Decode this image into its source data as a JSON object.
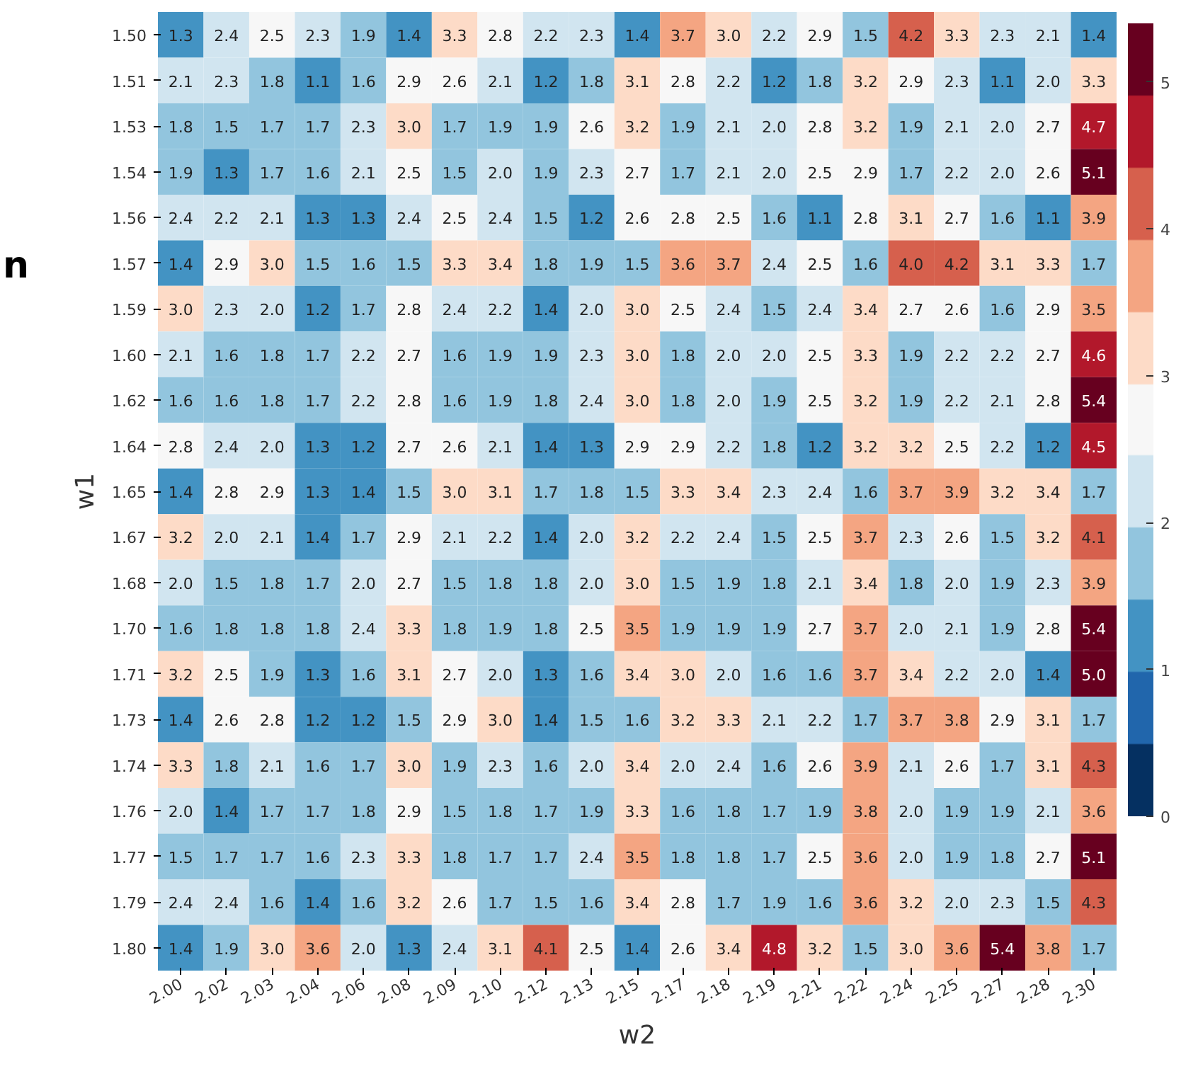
{
  "chart_data": {
    "type": "heatmap",
    "xlabel": "w2",
    "ylabel": "w1",
    "annotations": [
      "n"
    ],
    "categories": [
      "2.00",
      "2.02",
      "2.03",
      "2.04",
      "2.06",
      "2.08",
      "2.09",
      "2.10",
      "2.12",
      "2.13",
      "2.15",
      "2.17",
      "2.18",
      "2.19",
      "2.21",
      "2.22",
      "2.24",
      "2.25",
      "2.27",
      "2.28",
      "2.30"
    ],
    "y_categories": [
      "1.50",
      "1.51",
      "1.53",
      "1.54",
      "1.56",
      "1.57",
      "1.59",
      "1.60",
      "1.62",
      "1.64",
      "1.65",
      "1.67",
      "1.68",
      "1.70",
      "1.71",
      "1.73",
      "1.74",
      "1.76",
      "1.77",
      "1.79",
      "1.80"
    ],
    "cells": [
      [
        1.3,
        2.4,
        2.5,
        2.3,
        1.9,
        1.4,
        3.3,
        2.8,
        2.2,
        2.3,
        1.4,
        3.7,
        3.0,
        2.2,
        2.9,
        1.5,
        4.2,
        3.3,
        2.3,
        2.1,
        1.4
      ],
      [
        2.1,
        2.3,
        1.8,
        1.1,
        1.6,
        2.9,
        2.6,
        2.1,
        1.2,
        1.8,
        3.1,
        2.8,
        2.2,
        1.2,
        1.8,
        3.2,
        2.9,
        2.3,
        1.1,
        2.0,
        3.3
      ],
      [
        1.8,
        1.5,
        1.7,
        1.7,
        2.3,
        3.0,
        1.7,
        1.9,
        1.9,
        2.6,
        3.2,
        1.9,
        2.1,
        2.0,
        2.8,
        3.2,
        1.9,
        2.1,
        2.0,
        2.7,
        4.7
      ],
      [
        1.9,
        1.3,
        1.7,
        1.6,
        2.1,
        2.5,
        1.5,
        2.0,
        1.9,
        2.3,
        2.7,
        1.7,
        2.1,
        2.0,
        2.5,
        2.9,
        1.7,
        2.2,
        2.0,
        2.6,
        5.1
      ],
      [
        2.4,
        2.2,
        2.1,
        1.3,
        1.3,
        2.4,
        2.5,
        2.4,
        1.5,
        1.2,
        2.6,
        2.8,
        2.5,
        1.6,
        1.1,
        2.8,
        3.1,
        2.7,
        1.6,
        1.1,
        3.9
      ],
      [
        1.4,
        2.9,
        3.0,
        1.5,
        1.6,
        1.5,
        3.3,
        3.4,
        1.8,
        1.9,
        1.5,
        3.6,
        3.7,
        2.4,
        2.5,
        1.6,
        4.0,
        4.2,
        3.1,
        3.3,
        1.7
      ],
      [
        3.0,
        2.3,
        2.0,
        1.2,
        1.7,
        2.8,
        2.4,
        2.2,
        1.4,
        2.0,
        3.0,
        2.5,
        2.4,
        1.5,
        2.4,
        3.4,
        2.7,
        2.6,
        1.6,
        2.9,
        3.5
      ],
      [
        2.1,
        1.6,
        1.8,
        1.7,
        2.2,
        2.7,
        1.6,
        1.9,
        1.9,
        2.3,
        3.0,
        1.8,
        2.0,
        2.0,
        2.5,
        3.3,
        1.9,
        2.2,
        2.2,
        2.7,
        4.6
      ],
      [
        1.6,
        1.6,
        1.8,
        1.7,
        2.2,
        2.8,
        1.6,
        1.9,
        1.8,
        2.4,
        3.0,
        1.8,
        2.0,
        1.9,
        2.5,
        3.2,
        1.9,
        2.2,
        2.1,
        2.8,
        5.4
      ],
      [
        2.8,
        2.4,
        2.0,
        1.3,
        1.2,
        2.7,
        2.6,
        2.1,
        1.4,
        1.3,
        2.9,
        2.9,
        2.2,
        1.8,
        1.2,
        3.2,
        3.2,
        2.5,
        2.2,
        1.2,
        4.5
      ],
      [
        1.4,
        2.8,
        2.9,
        1.3,
        1.4,
        1.5,
        3.0,
        3.1,
        1.7,
        1.8,
        1.5,
        3.3,
        3.4,
        2.3,
        2.4,
        1.6,
        3.7,
        3.9,
        3.2,
        3.4,
        1.7
      ],
      [
        3.2,
        2.0,
        2.1,
        1.4,
        1.7,
        2.9,
        2.1,
        2.2,
        1.4,
        2.0,
        3.2,
        2.2,
        2.4,
        1.5,
        2.5,
        3.7,
        2.3,
        2.6,
        1.5,
        3.2,
        4.1
      ],
      [
        2.0,
        1.5,
        1.8,
        1.7,
        2.0,
        2.7,
        1.5,
        1.8,
        1.8,
        2.0,
        3.0,
        1.5,
        1.9,
        1.8,
        2.1,
        3.4,
        1.8,
        2.0,
        1.9,
        2.3,
        3.9
      ],
      [
        1.6,
        1.8,
        1.8,
        1.8,
        2.4,
        3.3,
        1.8,
        1.9,
        1.8,
        2.5,
        3.5,
        1.9,
        1.9,
        1.9,
        2.7,
        3.7,
        2.0,
        2.1,
        1.9,
        2.8,
        5.4
      ],
      [
        3.2,
        2.5,
        1.9,
        1.3,
        1.6,
        3.1,
        2.7,
        2.0,
        1.3,
        1.6,
        3.4,
        3.0,
        2.0,
        1.6,
        1.6,
        3.7,
        3.4,
        2.2,
        2.0,
        1.4,
        5.0
      ],
      [
        1.4,
        2.6,
        2.8,
        1.2,
        1.2,
        1.5,
        2.9,
        3.0,
        1.4,
        1.5,
        1.6,
        3.2,
        3.3,
        2.1,
        2.2,
        1.7,
        3.7,
        3.8,
        2.9,
        3.1,
        1.7
      ],
      [
        3.3,
        1.8,
        2.1,
        1.6,
        1.7,
        3.0,
        1.9,
        2.3,
        1.6,
        2.0,
        3.4,
        2.0,
        2.4,
        1.6,
        2.6,
        3.9,
        2.1,
        2.6,
        1.7,
        3.1,
        4.3
      ],
      [
        2.0,
        1.4,
        1.7,
        1.7,
        1.8,
        2.9,
        1.5,
        1.8,
        1.7,
        1.9,
        3.3,
        1.6,
        1.8,
        1.7,
        1.9,
        3.8,
        2.0,
        1.9,
        1.9,
        2.1,
        3.6
      ],
      [
        1.5,
        1.7,
        1.7,
        1.6,
        2.3,
        3.3,
        1.8,
        1.7,
        1.7,
        2.4,
        3.5,
        1.8,
        1.8,
        1.7,
        2.5,
        3.6,
        2.0,
        1.9,
        1.8,
        2.7,
        5.1
      ],
      [
        2.4,
        2.4,
        1.6,
        1.4,
        1.6,
        3.2,
        2.6,
        1.7,
        1.5,
        1.6,
        3.4,
        2.8,
        1.7,
        1.9,
        1.6,
        3.6,
        3.2,
        2.0,
        2.3,
        1.5,
        4.3
      ],
      [
        1.4,
        1.9,
        3.0,
        3.6,
        2.0,
        1.3,
        2.4,
        3.1,
        4.1,
        2.5,
        1.4,
        2.6,
        3.4,
        4.8,
        3.2,
        1.5,
        3.0,
        3.6,
        5.4,
        3.8,
        1.7
      ]
    ],
    "data_labels": true,
    "cell_labels": [
      [
        "1.3",
        "2.4",
        "2.5",
        "2.3",
        "1.9",
        "1.4",
        "3.3",
        "2.8",
        "2.2",
        "2.3",
        "1.4",
        "3.7",
        "3.0",
        "2.2",
        "2.9",
        "1.5",
        "4.2",
        "3.3",
        "2.3",
        "2.1",
        "1.4"
      ],
      [
        "2.1",
        "2.3",
        "1.8",
        "1.1",
        "1.6",
        "2.9",
        "2.6",
        "2.1",
        "1.2",
        "1.8",
        "3.1",
        "2.8",
        "2.2",
        "1.2",
        "1.8",
        "3.2",
        "2.9",
        "2.3",
        "1.1",
        "2.0",
        "3.3"
      ],
      [
        "1.8",
        "1.5",
        "1.7",
        "1.7",
        "2.3",
        "3.0",
        "1.7",
        "1.9",
        "1.9",
        "2.6",
        "3.2",
        "1.9",
        "2.1",
        "2.0",
        "2.8",
        "3.2",
        "1.9",
        "2.1",
        "2.0",
        "2.7",
        "4.7"
      ],
      [
        "1.9",
        "1.3",
        "1.7",
        "1.6",
        "2.1",
        "2.5",
        "1.5",
        "2.0",
        "1.9",
        "2.3",
        "2.7",
        "1.7",
        "2.1",
        "2.0",
        "2.5",
        "2.9",
        "1.7",
        "2.2",
        "2.0",
        "2.6",
        "5.1"
      ],
      [
        "2.4",
        "2.2",
        "2.1",
        "1.3",
        "1.3",
        "2.4",
        "2.5",
        "2.4",
        "1.5",
        "1.2",
        "2.6",
        "2.8",
        "2.5",
        "1.6",
        "1.1",
        "2.8",
        "3.1",
        "2.7",
        "1.6",
        "1.1",
        "3.9"
      ],
      [
        "1.4",
        "2.9",
        "3.0",
        "1.5",
        "1.6",
        "1.5",
        "3.3",
        "3.4",
        "1.8",
        "1.9",
        "1.5",
        "3.6",
        "3.7",
        "2.4",
        "2.5",
        "1.6",
        "4.0",
        "4.2",
        "3.1",
        "3.3",
        "1.7"
      ],
      [
        "3.0",
        "2.3",
        "2.0",
        "1.2",
        "1.7",
        "2.8",
        "2.4",
        "2.2",
        "1.4",
        "2.0",
        "3.0",
        "2.5",
        "2.4",
        "1.5",
        "2.4",
        "3.4",
        "2.7",
        "2.6",
        "1.6",
        "2.9",
        "3.5"
      ],
      [
        "2.1",
        "1.6",
        "1.8",
        "1.7",
        "2.2",
        "2.7",
        "1.6",
        "1.9",
        "1.9",
        "2.3",
        "3.0",
        "1.8",
        "2.0",
        "2.0",
        "2.5",
        "3.3",
        "1.9",
        "2.2",
        "2.2",
        "2.7",
        "4.6"
      ],
      [
        "1.6",
        "1.6",
        "1.8",
        "1.7",
        "2.2",
        "2.8",
        "1.6",
        "1.9",
        "1.8",
        "2.4",
        "3.0",
        "1.8",
        "2.0",
        "1.9",
        "2.5",
        "3.2",
        "1.9",
        "2.2",
        "2.1",
        "2.8",
        "5.4"
      ],
      [
        "2.8",
        "2.4",
        "2.0",
        "1.3",
        "1.2",
        "2.7",
        "2.6",
        "2.1",
        "1.4",
        "1.3",
        "2.9",
        "2.9",
        "2.2",
        "1.8",
        "1.2",
        "3.2",
        "3.2",
        "2.5",
        "2.2",
        "1.2",
        "4.5"
      ],
      [
        "1.4",
        "2.8",
        "2.9",
        "1.3",
        "1.4",
        "1.5",
        "3.0",
        "3.1",
        "1.7",
        "1.8",
        "1.5",
        "3.3",
        "3.4",
        "2.3",
        "2.4",
        "1.6",
        "3.7",
        "3.9",
        "3.2",
        "3.4",
        "1.7"
      ],
      [
        "3.2",
        "2.0",
        "2.1",
        "1.4",
        "1.7",
        "2.9",
        "2.1",
        "2.2",
        "1.4",
        "2.0",
        "3.2",
        "2.2",
        "2.4",
        "1.5",
        "2.5",
        "3.7",
        "2.3",
        "2.6",
        "1.5",
        "3.2",
        "4.1"
      ],
      [
        "2.0",
        "1.5",
        "1.8",
        "1.7",
        "2.0",
        "2.7",
        "1.5",
        "1.8",
        "1.8",
        "2.0",
        "3.0",
        "1.5",
        "1.9",
        "1.8",
        "2.1",
        "3.4",
        "1.8",
        "2.0",
        "1.9",
        "2.3",
        "3.9"
      ],
      [
        "1.6",
        "1.8",
        "1.8",
        "1.8",
        "2.4",
        "3.3",
        "1.8",
        "1.9",
        "1.8",
        "2.5",
        "3.5",
        "1.9",
        "1.9",
        "1.9",
        "2.7",
        "3.7",
        "2.0",
        "2.1",
        "1.9",
        "2.8",
        "5.4"
      ],
      [
        "3.2",
        "2.5",
        "1.9",
        "1.3",
        "1.6",
        "3.1",
        "2.7",
        "2.0",
        "1.3",
        "1.6",
        "3.4",
        "3.0",
        "2.0",
        "1.6",
        "1.6",
        "3.7",
        "3.4",
        "2.2",
        "2.0",
        "1.4",
        "5.0"
      ],
      [
        "1.4",
        "2.6",
        "2.8",
        "1.2",
        "1.2",
        "1.5",
        "2.9",
        "3.0",
        "1.4",
        "1.5",
        "1.6",
        "3.2",
        "3.3",
        "2.1",
        "2.2",
        "1.7",
        "3.7",
        "3.8",
        "2.9",
        "3.1",
        "1.7"
      ],
      [
        "3.3",
        "1.8",
        "2.1",
        "1.6",
        "1.7",
        "3.0",
        "1.9",
        "2.3",
        "1.6",
        "2.0",
        "3.4",
        "2.0",
        "2.4",
        "1.6",
        "2.6",
        "3.9",
        "2.1",
        "2.6",
        "1.7",
        "3.1",
        "4.3"
      ],
      [
        "2.0",
        "1.4",
        "1.7",
        "1.7",
        "1.8",
        "2.9",
        "1.5",
        "1.8",
        "1.7",
        "1.9",
        "3.3",
        "1.6",
        "1.8",
        "1.7",
        "1.9",
        "3.8",
        "2.0",
        "1.9",
        "1.9",
        "2.1",
        "3.6"
      ],
      [
        "1.5",
        "1.7",
        "1.7",
        "1.6",
        "2.3",
        "3.3",
        "1.8",
        "1.7",
        "1.7",
        "2.4",
        "3.5",
        "1.8",
        "1.8",
        "1.7",
        "2.5",
        "3.6",
        "2.0",
        "1.9",
        "1.8",
        "2.7",
        "5.1"
      ],
      [
        "2.4",
        "2.4",
        "1.6",
        "1.4",
        "1.6",
        "3.2",
        "2.6",
        "1.7",
        "1.5",
        "1.6",
        "3.4",
        "2.8",
        "1.7",
        "1.9",
        "1.6",
        "3.6",
        "3.2",
        "2.0",
        "2.3",
        "1.5",
        "4.3"
      ],
      [
        "1.4",
        "1.9",
        "3.0",
        "3.6",
        "2.0",
        "1.3",
        "2.4",
        "3.1",
        "4.1",
        "2.5",
        "1.4",
        "2.6",
        "3.4",
        "4.8",
        "3.2",
        "1.5",
        "3.0",
        "3.6",
        "5.4",
        "3.8",
        "1.7"
      ]
    ],
    "clim": [
      0,
      5.4
    ],
    "cticks": [
      0,
      1,
      2,
      3,
      4,
      5
    ]
  }
}
